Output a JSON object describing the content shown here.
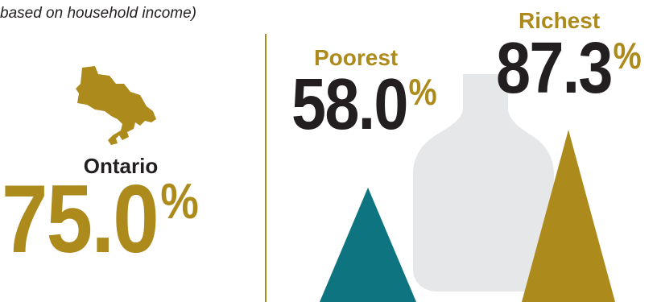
{
  "subtitle": "based on household income)",
  "ontario": {
    "label": "Ontario",
    "value": "75.0",
    "unit": "%",
    "color": "#ac8a1c"
  },
  "chart_data": {
    "type": "bar",
    "categories": [
      "Poorest",
      "Richest"
    ],
    "values": [
      58.0,
      87.3
    ],
    "value_labels": [
      "58.0",
      "87.3"
    ],
    "unit": "%",
    "colors": [
      "#0e7580",
      "#ac8a1c"
    ],
    "ylim": [
      0,
      100
    ],
    "background_icon": "bottle-icon",
    "grid": false
  },
  "colors": {
    "gold": "#ac8a1c",
    "teal": "#0e7580",
    "dark_text": "#231f20",
    "bottle": "#e6e7e8"
  },
  "icons": {
    "map": "ontario-map-icon",
    "bottle": "bottle-icon"
  }
}
